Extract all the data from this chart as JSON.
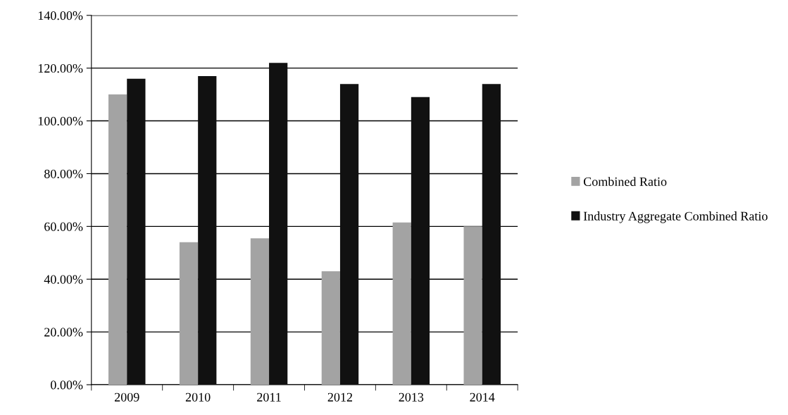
{
  "chart_data": {
    "type": "bar",
    "categories": [
      "2009",
      "2010",
      "2011",
      "2012",
      "2013",
      "2014"
    ],
    "series": [
      {
        "name": "Combined Ratio",
        "color": "#a3a3a3",
        "values": [
          110,
          54,
          55.5,
          43,
          61.5,
          60
        ]
      },
      {
        "name": "Industry Aggregate Combined Ratio",
        "color": "#111111",
        "values": [
          116,
          117,
          122,
          114,
          109,
          114
        ]
      }
    ],
    "ylim": [
      0,
      140
    ],
    "yticks": [
      {
        "value": 0,
        "label": "0.00%"
      },
      {
        "value": 20,
        "label": "20.00%"
      },
      {
        "value": 40,
        "label": "40.00%"
      },
      {
        "value": 60,
        "label": "60.00%"
      },
      {
        "value": 80,
        "label": "80.00%"
      },
      {
        "value": 100,
        "label": "100.00%"
      },
      {
        "value": 120,
        "label": "120.00%"
      },
      {
        "value": 140,
        "label": "140.00%"
      }
    ],
    "grid": "y",
    "legend": "right"
  }
}
